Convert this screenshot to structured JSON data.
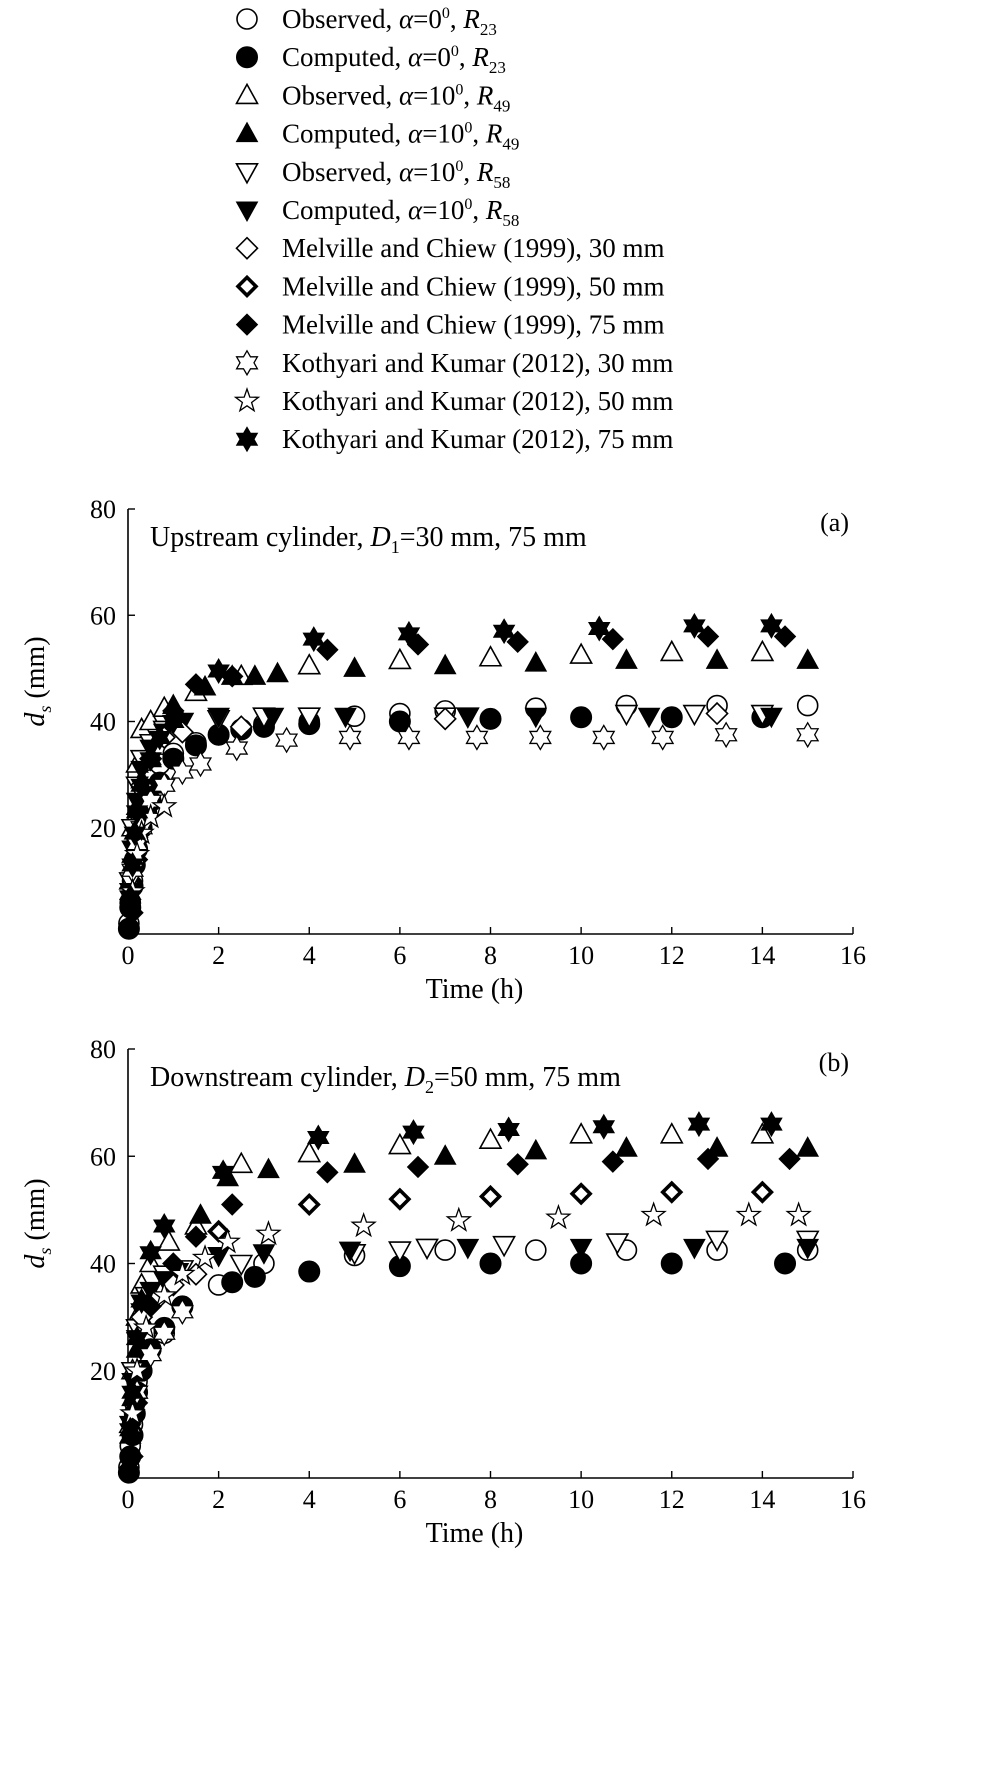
{
  "legend": [
    {
      "key": "obs_r23",
      "marker": "circle-open",
      "text": "Observed, ",
      "alpha": "α",
      "alpha_val": "=0",
      "deg": "0",
      "sep": ", ",
      "r": "R",
      "sub": "23"
    },
    {
      "key": "comp_r23",
      "marker": "circle-filled",
      "text": "Computed, ",
      "alpha": "α",
      "alpha_val": "=0",
      "deg": "0",
      "sep": ", ",
      "r": "R",
      "sub": "23"
    },
    {
      "key": "obs_r49",
      "marker": "triangle-up-open",
      "text": "Observed, ",
      "alpha": "α",
      "alpha_val": "=10",
      "deg": "0",
      "sep": ", ",
      "r": "R",
      "sub": "49"
    },
    {
      "key": "comp_r49",
      "marker": "triangle-up-filled",
      "text": "Computed, ",
      "alpha": "α",
      "alpha_val": "=10",
      "deg": "0",
      "sep": ", ",
      "r": "R",
      "sub": "49"
    },
    {
      "key": "obs_r58",
      "marker": "triangle-down-open",
      "text": "Observed, ",
      "alpha": "α",
      "alpha_val": "=10",
      "deg": "0",
      "sep": ", ",
      "r": "R",
      "sub": "58"
    },
    {
      "key": "comp_r58",
      "marker": "triangle-down-filled",
      "text": "Computed, ",
      "alpha": "α",
      "alpha_val": "=10",
      "deg": "0",
      "sep": ", ",
      "r": "R",
      "sub": "58"
    },
    {
      "key": "mc30",
      "marker": "diamond-open",
      "text": "Melville and Chiew (1999), 30 mm"
    },
    {
      "key": "mc50",
      "marker": "diamond-bold",
      "text": "Melville and Chiew (1999), 50 mm"
    },
    {
      "key": "mc75",
      "marker": "diamond-filled",
      "text": "Melville and Chiew (1999), 75 mm"
    },
    {
      "key": "kk30",
      "marker": "hexagram-open",
      "text": "Kothyari and Kumar (2012), 30 mm"
    },
    {
      "key": "kk50",
      "marker": "star-open",
      "text": "Kothyari and Kumar (2012), 50 mm"
    },
    {
      "key": "kk75",
      "marker": "hexagram-filled",
      "text": "Kothyari and Kumar (2012), 75 mm"
    }
  ],
  "chart_data": [
    {
      "type": "scatter",
      "panel_label": "(a)",
      "title_pre": "Upstream cylinder, ",
      "title_var": "D",
      "title_sub": "1",
      "title_post": "=30 mm, 75 mm",
      "xlabel": "Time (h)",
      "ylabel_var": "d",
      "ylabel_sub": "s",
      "ylabel_post": " (mm)",
      "xlim": [
        0,
        16
      ],
      "ylim": [
        0,
        80
      ],
      "xticks": [
        0,
        2,
        4,
        6,
        8,
        10,
        12,
        14,
        16
      ],
      "yticks": [
        20,
        40,
        60,
        80
      ],
      "series": [
        {
          "key": "obs_r23",
          "x": [
            0.02,
            0.05,
            0.1,
            0.15,
            0.2,
            0.3,
            0.4,
            0.5,
            0.7,
            1.0,
            1.5,
            2.0,
            2.5,
            3.0,
            4.0,
            5.0,
            6.0,
            7.0,
            9.0,
            11.0,
            13.0,
            15.0
          ],
          "y": [
            2,
            6,
            10,
            14,
            18,
            22,
            26,
            29,
            32,
            34,
            36,
            37.5,
            38.5,
            39.5,
            40,
            41,
            41.5,
            42,
            42.5,
            43,
            43,
            43
          ]
        },
        {
          "key": "comp_r23",
          "x": [
            0.02,
            0.05,
            0.1,
            0.15,
            0.2,
            0.3,
            0.4,
            0.5,
            0.7,
            1.0,
            1.5,
            2.0,
            2.5,
            3.0,
            4.0,
            6.0,
            8.0,
            10.0,
            12.0,
            14.0
          ],
          "y": [
            1,
            5,
            9,
            13,
            16,
            20,
            23,
            25,
            28.5,
            33,
            35.5,
            37.5,
            38.5,
            39,
            39.5,
            40,
            40.5,
            40.8,
            40.8,
            40.8
          ]
        },
        {
          "key": "obs_r49",
          "x": [
            0.05,
            0.1,
            0.2,
            0.3,
            0.5,
            0.8,
            1.5,
            2.5,
            4.0,
            6.0,
            8.0,
            10.0,
            12.0,
            14.0
          ],
          "y": [
            10,
            20,
            32,
            38.5,
            40,
            42.5,
            45.5,
            48.5,
            50.5,
            51.5,
            52,
            52.5,
            53,
            53
          ]
        },
        {
          "key": "comp_r49",
          "x": [
            0.05,
            0.1,
            0.2,
            0.3,
            0.5,
            1.0,
            1.7,
            2.3,
            2.8,
            3.3,
            5.0,
            7.0,
            9.0,
            11.0,
            13.0,
            15.0
          ],
          "y": [
            8,
            15,
            24,
            29,
            33,
            43,
            46.5,
            48.5,
            48.5,
            49,
            50,
            50.5,
            51,
            51.5,
            51.5,
            51.5
          ]
        },
        {
          "key": "obs_r58",
          "x": [
            0.05,
            0.1,
            0.2,
            0.3,
            0.5,
            0.8,
            1.2,
            2.0,
            3.0,
            4.0,
            7.0,
            7.5,
            11.0,
            12.5,
            14.0
          ],
          "y": [
            10,
            20,
            28,
            33,
            36,
            38.5,
            40,
            40.5,
            41,
            41,
            41,
            41,
            41.5,
            41.5,
            41.5
          ]
        },
        {
          "key": "comp_r58",
          "x": [
            0.05,
            0.1,
            0.2,
            0.3,
            0.5,
            0.8,
            1.2,
            2.0,
            3.2,
            4.8,
            7.5,
            9.0,
            11.5,
            14.2
          ],
          "y": [
            8,
            16,
            25,
            31,
            35,
            38,
            40,
            41,
            41,
            41,
            41,
            41,
            41,
            41
          ]
        },
        {
          "key": "mc30",
          "x": [
            0.3,
            0.5,
            0.8,
            1.2,
            2.5,
            7.0,
            13.0
          ],
          "y": [
            28,
            33,
            37,
            38,
            39,
            40.5,
            41.5
          ]
        },
        {
          "key": "mc75",
          "x": [
            0.1,
            0.2,
            0.3,
            0.5,
            1.0,
            1.5,
            2.3,
            4.4,
            6.4,
            8.6,
            10.7,
            12.8,
            14.5
          ],
          "y": [
            4,
            14,
            24,
            33,
            42,
            47,
            48.5,
            53.5,
            54.5,
            55,
            55.5,
            56,
            56
          ]
        },
        {
          "key": "kk30",
          "x": [
            0.1,
            0.2,
            0.3,
            0.5,
            0.8,
            1.2,
            1.6,
            2.4,
            3.5,
            4.9,
            6.2,
            7.7,
            9.1,
            10.5,
            11.8,
            13.2,
            15.0
          ],
          "y": [
            12,
            17,
            20,
            25,
            28,
            30.5,
            32,
            35,
            36.5,
            37,
            37,
            37,
            37,
            37,
            37,
            37.5,
            37.5
          ]
        },
        {
          "key": "kk50",
          "x": [
            0.1,
            0.2,
            0.3,
            0.5,
            0.8
          ],
          "y": [
            8,
            15,
            19,
            22,
            24
          ]
        },
        {
          "key": "kk75",
          "x": [
            0.05,
            0.1,
            0.15,
            0.2,
            0.3,
            0.5,
            0.7,
            1.0,
            2.0,
            4.1,
            6.2,
            8.3,
            10.4,
            12.5,
            14.2
          ],
          "y": [
            7,
            13,
            19,
            23,
            28,
            33,
            37,
            40,
            49.5,
            55.5,
            56.5,
            57,
            57.5,
            58,
            58
          ]
        }
      ]
    },
    {
      "type": "scatter",
      "panel_label": "(b)",
      "title_pre": "Downstream cylinder, ",
      "title_var": "D",
      "title_sub": "2",
      "title_post": "=50 mm, 75 mm",
      "xlabel": "Time (h)",
      "ylabel_var": "d",
      "ylabel_sub": "s",
      "ylabel_post": " (mm)",
      "xlim": [
        0,
        16
      ],
      "ylim": [
        0,
        80
      ],
      "xticks": [
        0,
        2,
        4,
        6,
        8,
        10,
        12,
        14,
        16
      ],
      "yticks": [
        20,
        40,
        60,
        80
      ],
      "series": [
        {
          "key": "obs_r23",
          "x": [
            0.02,
            0.05,
            0.1,
            0.15,
            0.2,
            0.3,
            0.5,
            0.8,
            1.2,
            2.0,
            3.0,
            5.0,
            7.0,
            9.0,
            11.0,
            13.0,
            15.0
          ],
          "y": [
            2,
            6,
            10,
            14,
            18,
            20,
            24,
            27,
            32,
            36,
            40,
            41.5,
            42.5,
            42.5,
            42.5,
            42.5,
            42.5
          ]
        },
        {
          "key": "comp_r23",
          "x": [
            0.02,
            0.05,
            0.1,
            0.15,
            0.2,
            0.3,
            0.5,
            0.8,
            1.2,
            2.3,
            2.8,
            4.0,
            6.0,
            8.0,
            10.0,
            12.0,
            14.5
          ],
          "y": [
            1,
            4,
            8,
            12,
            16,
            20,
            24,
            28,
            32,
            36.5,
            37.5,
            38.5,
            39.5,
            40,
            40,
            40,
            40
          ]
        },
        {
          "key": "obs_r49",
          "x": [
            0.05,
            0.1,
            0.2,
            0.3,
            0.5,
            0.9,
            1.5,
            2.5,
            4.0,
            6.0,
            8.0,
            10.0,
            12.0,
            14.0
          ],
          "y": [
            10,
            20,
            30,
            36,
            40,
            44,
            47,
            58.5,
            60.5,
            62,
            63,
            64,
            64,
            64
          ]
        },
        {
          "key": "comp_r49",
          "x": [
            0.05,
            0.1,
            0.2,
            0.3,
            0.5,
            0.9,
            1.6,
            2.2,
            3.1,
            5.0,
            7.0,
            9.0,
            11.0,
            13.0,
            15.0
          ],
          "y": [
            8,
            15,
            24,
            30,
            34,
            38,
            49,
            56,
            57.5,
            58.5,
            60,
            61,
            61.5,
            61.5,
            61.5
          ]
        },
        {
          "key": "obs_r58",
          "x": [
            0.1,
            0.2,
            0.4,
            0.8,
            1.2,
            2.5,
            5.0,
            6.0,
            6.6,
            8.3,
            10.8,
            13.0,
            15.0
          ],
          "y": [
            20,
            28,
            34,
            38,
            39,
            40,
            42,
            42.5,
            43,
            43.5,
            44,
            44.5,
            44.5
          ]
        },
        {
          "key": "comp_r58",
          "x": [
            0.05,
            0.1,
            0.2,
            0.3,
            0.5,
            0.8,
            1.1,
            2.0,
            3.0,
            4.9,
            7.5,
            10.0,
            12.5,
            15.0
          ],
          "y": [
            10,
            18,
            26,
            31,
            35,
            37,
            38.5,
            41.5,
            42,
            42.5,
            43,
            43,
            43,
            43
          ]
        },
        {
          "key": "mc30",
          "x": [
            0.3,
            0.6,
            1.0,
            1.5
          ],
          "y": [
            30,
            33,
            36,
            38
          ]
        },
        {
          "key": "mc50",
          "x": [
            2.0,
            4.0,
            6.0,
            8.0,
            10.0,
            12.0,
            14.0
          ],
          "y": [
            46,
            51,
            52,
            52.5,
            53,
            53.3,
            53.3
          ]
        },
        {
          "key": "mc75",
          "x": [
            0.1,
            0.2,
            0.3,
            0.5,
            1.0,
            1.5,
            2.3,
            4.4,
            6.4,
            8.6,
            10.7,
            12.8,
            14.6
          ],
          "y": [
            4,
            14,
            24,
            32,
            40,
            45,
            51,
            57,
            58,
            58.5,
            59,
            59.5,
            59.5
          ]
        },
        {
          "key": "kk30",
          "x": [
            0.2,
            0.5,
            0.8,
            1.2
          ],
          "y": [
            16,
            23,
            27,
            31
          ]
        },
        {
          "key": "kk50",
          "x": [
            0.1,
            0.2,
            0.4,
            0.8,
            1.2,
            1.7,
            2.2,
            3.1,
            5.2,
            7.3,
            9.5,
            11.6,
            13.7,
            14.8
          ],
          "y": [
            12,
            20,
            28,
            34,
            38,
            41,
            44,
            45.5,
            47,
            48,
            48.5,
            49,
            49,
            49
          ]
        },
        {
          "key": "kk75",
          "x": [
            0.05,
            0.1,
            0.2,
            0.3,
            0.5,
            0.8,
            2.1,
            4.2,
            6.3,
            8.4,
            10.5,
            12.6,
            14.2
          ],
          "y": [
            9,
            16,
            26,
            33,
            42,
            47,
            57,
            63.5,
            64.5,
            65,
            65.5,
            66,
            66
          ]
        }
      ]
    }
  ]
}
